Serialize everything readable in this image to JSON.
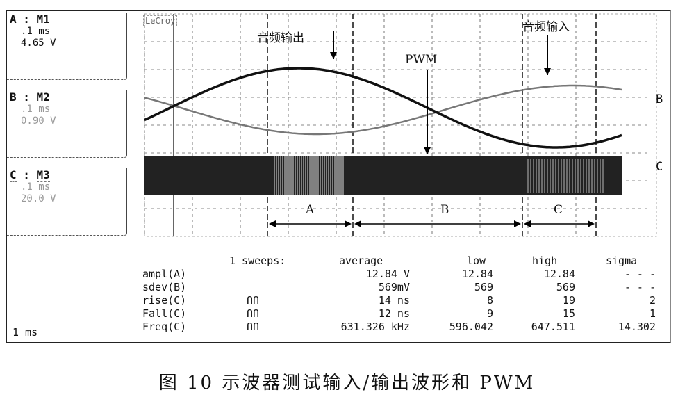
{
  "scope": {
    "brand": "LeCroy",
    "timebase": "1 ms",
    "channels": [
      {
        "id": "A",
        "name": "M1",
        "time": ".1 ms",
        "volts": "4.65 V"
      },
      {
        "id": "B",
        "name": "M2",
        "time": ".1 ms",
        "volts": "0.90 V"
      },
      {
        "id": "C",
        "name": "M3",
        "time": ".1 ms",
        "volts": "20.0 V"
      }
    ],
    "trace_labels": {
      "B": "B",
      "C": "C"
    },
    "annotations": {
      "audio_out": "音频输出",
      "pwm": "PWM",
      "audio_in": "音频输入"
    },
    "regions": [
      "A",
      "B",
      "C"
    ]
  },
  "measurements": {
    "header": [
      "1 sweeps:",
      "average",
      "low",
      "high",
      "sigma"
    ],
    "rows": [
      {
        "param": "ampl(A)",
        "icon": "",
        "average": "12.84 V",
        "low": "12.84",
        "high": "12.84",
        "sigma": "- - -"
      },
      {
        "param": "sdev(B)",
        "icon": "",
        "average": "569mV",
        "low": "569",
        "high": "569",
        "sigma": "- - -"
      },
      {
        "param": "rise(C)",
        "icon": "ՈՈ",
        "average": "14 ns",
        "low": "8",
        "high": "19",
        "sigma": "2"
      },
      {
        "param": "Fall(C)",
        "icon": "ՈՈ",
        "average": "12 ns",
        "low": "9",
        "high": "15",
        "sigma": "1"
      },
      {
        "param": "Freq(C)",
        "icon": "ՈՈ",
        "average": "631.326 kHz",
        "low": "596.042",
        "high": "647.511",
        "sigma": "14.302"
      }
    ]
  },
  "caption": "图 10   示波器测试输入/输出波形和 PWM"
}
